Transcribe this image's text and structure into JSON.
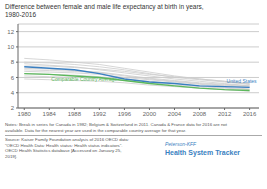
{
  "chart_data": {
    "type": "line",
    "title": "Difference between female and male life expectancy at birth in years,\n1980-2016",
    "x": [
      1980,
      1984,
      1988,
      1992,
      1996,
      2000,
      2004,
      2008,
      2012,
      2016
    ],
    "series": [
      {
        "color": "#cccccc",
        "values": [
          7.5,
          7.5,
          7.3,
          7.1,
          6.8,
          6.4,
          6.1,
          5.8,
          5.5,
          5.2
        ]
      },
      {
        "color": "#cccccc",
        "values": [
          7.8,
          7.6,
          7.4,
          7.0,
          6.6,
          6.2,
          5.8,
          5.5,
          5.2,
          4.9
        ]
      },
      {
        "color": "#cccccc",
        "values": [
          7.0,
          6.9,
          6.8,
          6.6,
          6.2,
          5.8,
          5.5,
          5.2,
          5.0,
          4.8
        ]
      },
      {
        "color": "#cccccc",
        "values": [
          6.8,
          6.7,
          6.6,
          6.4,
          6.0,
          5.7,
          5.4,
          5.1,
          4.9,
          4.7
        ]
      },
      {
        "color": "#cccccc",
        "values": [
          8.0,
          7.9,
          7.7,
          7.4,
          7.0,
          6.5,
          6.0,
          5.7,
          5.4,
          5.1
        ]
      },
      {
        "color": "#cccccc",
        "values": [
          7.2,
          7.1,
          6.9,
          6.7,
          6.3,
          5.9,
          5.6,
          5.3,
          5.1,
          4.9
        ]
      },
      {
        "color": "#cccccc",
        "values": [
          6.5,
          6.4,
          6.3,
          6.1,
          5.8,
          5.5,
          5.2,
          4.9,
          4.7,
          4.5
        ]
      },
      {
        "color": "#cccccc",
        "values": [
          8.5,
          8.3,
          8.0,
          7.7,
          7.2,
          6.7,
          6.2,
          5.8,
          5.5,
          5.1
        ]
      },
      {
        "color": "#cccccc",
        "values": [
          6.2,
          6.1,
          6.0,
          5.9,
          5.6,
          5.3,
          5.0,
          4.8,
          4.6,
          4.4
        ]
      },
      {
        "color": "#cccccc",
        "values": [
          5.8,
          5.7,
          5.6,
          5.5,
          5.3,
          5.0,
          4.8,
          4.6,
          4.4,
          4.2
        ]
      },
      {
        "name": "United States",
        "color": "#3a7fc1",
        "values": [
          7.4,
          7.2,
          7.0,
          6.5,
          5.8,
          5.4,
          5.2,
          4.9,
          4.8,
          4.7
        ]
      },
      {
        "name": "Comparable Country Average",
        "color": "#5cb85c",
        "values": [
          6.5,
          6.4,
          6.2,
          6.0,
          5.6,
          5.2,
          4.9,
          4.6,
          4.4,
          4.3
        ]
      }
    ],
    "xlim": [
      1979,
      2017.5
    ],
    "xticks": [
      1980,
      1984,
      1988,
      1992,
      1996,
      2000,
      2004,
      2008,
      2012,
      2016
    ],
    "ylim": [
      2,
      13
    ],
    "yticks": [
      2,
      4,
      6,
      8,
      10,
      12
    ],
    "grid": true,
    "annotations": [
      "Notes: Break in series for Canada in 1982; Belgium & Switzerland in 2011. Canada & France data for 2016 are not\navailable. Data for the nearest year are used in the comparable country average for that year.",
      "Source: Kaiser Family Foundation analysis of 2016 OECD data:\n\"OECD Health Data: Health status: Health status indicators\".\nOECD Health Statistics database [Accessed on January 25,\n2019].",
      "Peterson-KFF",
      "Health System Tracker"
    ]
  }
}
